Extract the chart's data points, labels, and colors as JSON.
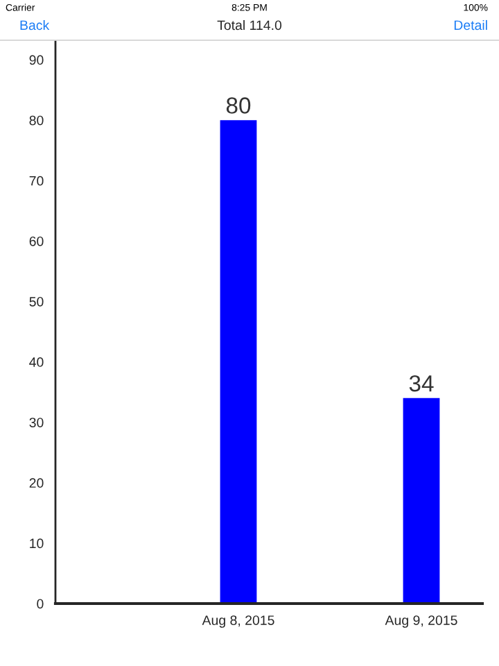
{
  "chart_data": {
    "type": "bar",
    "title": "Total 114.0",
    "annotations": [
      "Carrier",
      "8:25 PM",
      "100%",
      "Back",
      "Detail"
    ],
    "x": [
      "2015-08-08",
      "2015-08-09"
    ],
    "series": [
      {
        "color": "#0000ff",
        "values": [
          80,
          34
        ]
      }
    ],
    "data_labels": true,
    "xlim": [
      "2015-08-07",
      "2015-08-09T08:00"
    ],
    "xticks": [
      {
        "value": "2015-08-08",
        "label": "Aug 8, 2015"
      },
      {
        "value": "2015-08-09",
        "label": "Aug 9, 2015"
      }
    ],
    "ylim": [
      0,
      93
    ],
    "yticks": [
      0,
      10,
      20,
      30,
      40,
      50,
      60,
      70,
      80,
      90
    ],
    "grid": false,
    "legend": false
  }
}
